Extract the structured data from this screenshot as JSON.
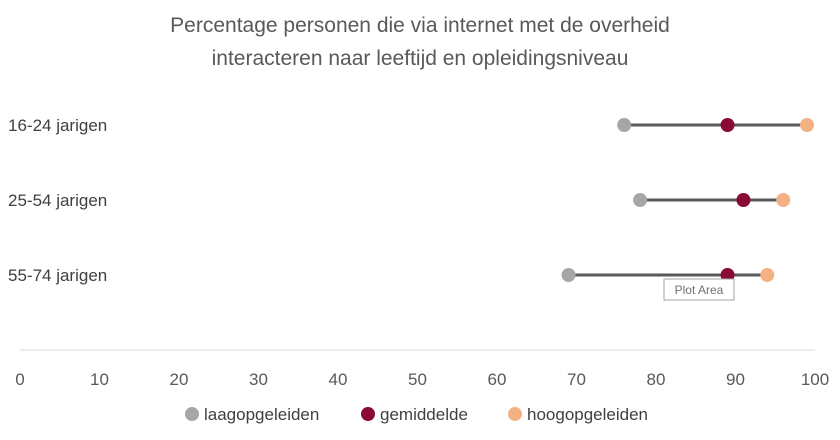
{
  "chart_data": {
    "type": "dumbbell",
    "title_lines": [
      "Percentage personen die via internet met de overheid",
      "interacteren naar leeftijd en opleidingsniveau"
    ],
    "categories": [
      "16-24 jarigen",
      "25-54 jarigen",
      "55-74 jarigen"
    ],
    "series": [
      {
        "name": "laagopgeleiden",
        "color": "#a6a6a6",
        "values": [
          76,
          78,
          69
        ]
      },
      {
        "name": "gemiddelde",
        "color": "#8b0a33",
        "values": [
          89,
          91,
          89
        ]
      },
      {
        "name": "hoogopgeleiden",
        "color": "#f4b183",
        "values": [
          99,
          96,
          94
        ]
      }
    ],
    "connector_color": "#595959",
    "xlim": [
      0,
      100
    ],
    "xticks": [
      0,
      10,
      20,
      30,
      40,
      50,
      60,
      70,
      80,
      90,
      100
    ],
    "grid": false,
    "legend_position": "bottom",
    "tooltip": "Plot Area"
  }
}
